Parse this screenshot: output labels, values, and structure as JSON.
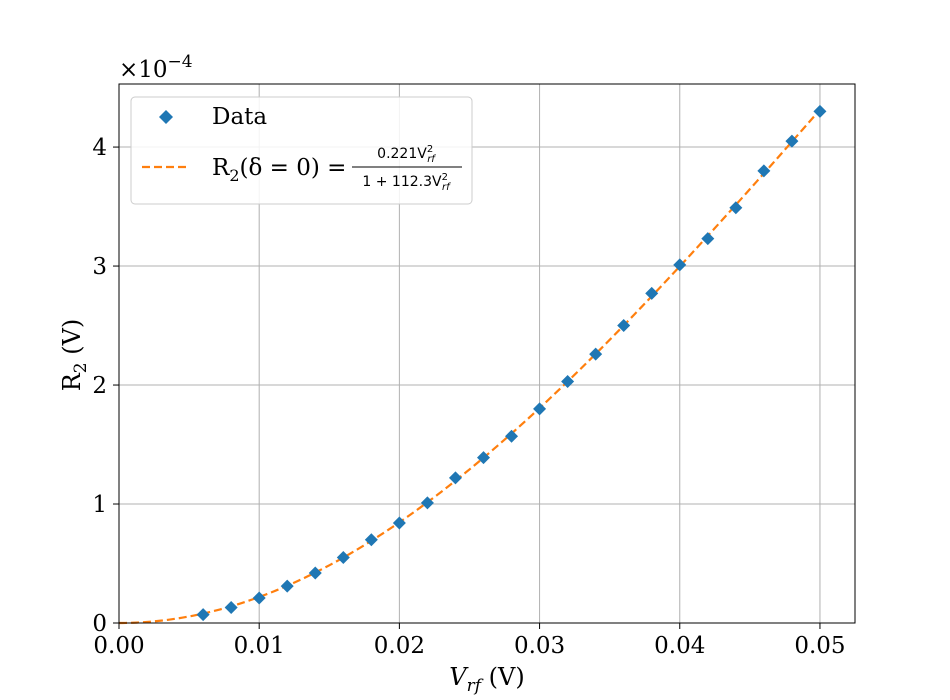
{
  "chart_data": {
    "type": "scatter",
    "title": "",
    "xlabel": "V_rf (V)",
    "ylabel": "R2 (V)",
    "xlabel_display": {
      "main": "V",
      "sub": "rf",
      "unit": " (V)"
    },
    "ylabel_display": {
      "main": "R",
      "sub": "2",
      "unit": " (V)"
    },
    "y_scale_label": "×10−4",
    "y_scale_display": {
      "base": "×10",
      "exp": "−4"
    },
    "y_scale_factor": 0.0001,
    "xlim": [
      0.0,
      0.0525
    ],
    "ylim": [
      0.0,
      4.53
    ],
    "xticks": [
      0.0,
      0.01,
      0.02,
      0.03,
      0.04,
      0.05
    ],
    "xtick_labels": [
      "0.00",
      "0.01",
      "0.02",
      "0.03",
      "0.04",
      "0.05"
    ],
    "yticks": [
      0,
      1,
      2,
      3,
      4
    ],
    "ytick_labels": [
      "0",
      "1",
      "2",
      "3",
      "4"
    ],
    "grid": true,
    "legend_position": "top-left",
    "series": [
      {
        "name": "Data",
        "kind": "markers",
        "marker": "diamond",
        "color": "#1f77b4",
        "x": [
          0.006,
          0.008,
          0.01,
          0.012,
          0.014,
          0.016,
          0.018,
          0.02,
          0.022,
          0.024,
          0.026,
          0.028,
          0.03,
          0.032,
          0.034,
          0.036,
          0.038,
          0.04,
          0.042,
          0.044,
          0.046,
          0.048,
          0.05
        ],
        "y": [
          0.07,
          0.13,
          0.21,
          0.31,
          0.42,
          0.55,
          0.7,
          0.84,
          1.01,
          1.22,
          1.39,
          1.57,
          1.8,
          2.03,
          2.26,
          2.5,
          2.77,
          3.01,
          3.23,
          3.49,
          3.8,
          4.05,
          4.3
        ]
      },
      {
        "name": "R2(δ = 0) = 0.221V_rf^2 / (1 + 112.3V_rf^2)",
        "kind": "line",
        "style": "dashed",
        "color": "#ff7f0e",
        "function": {
          "a": 0.221,
          "b": 112.3,
          "form": "a*V^2/(1+b*V^2)"
        }
      }
    ],
    "legend_display": {
      "data_label": "Data",
      "fit_prefix_main": "R",
      "fit_prefix_sub": "2",
      "fit_prefix_rest": "(δ = 0) =",
      "fit_num": "0.221V",
      "fit_num_sup": "2",
      "fit_num_sub": "rf",
      "fit_den": "1 + 112.3V",
      "fit_den_sup": "2",
      "fit_den_sub": "rf"
    }
  }
}
